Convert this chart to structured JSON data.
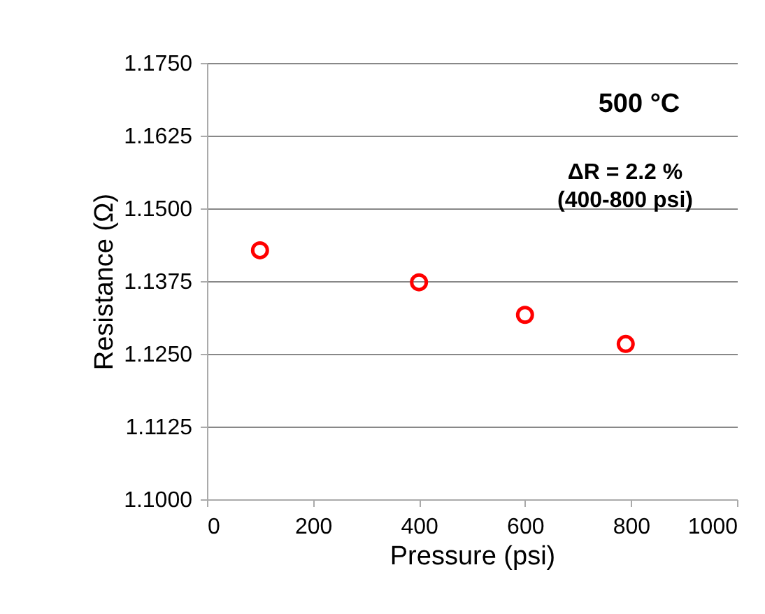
{
  "chart_data": {
    "type": "scatter",
    "xlabel": "Pressure (psi)",
    "ylabel": "Resistance (Ω)",
    "x": [
      100,
      400,
      600,
      790
    ],
    "series": [
      {
        "color": "#ff0000",
        "values": [
          1.1428,
          1.1373,
          1.1317,
          1.1267
        ]
      }
    ],
    "xlim": [
      0,
      1000
    ],
    "xticks": [
      0,
      200,
      400,
      600,
      800,
      1000
    ],
    "ylim": [
      1.1,
      1.175
    ],
    "yticks": [
      {
        "value": 1.1,
        "label": "1.1000"
      },
      {
        "value": 1.1125,
        "label": "1.1125"
      },
      {
        "value": 1.125,
        "label": "1.1250"
      },
      {
        "value": 1.1375,
        "label": "1.1375"
      },
      {
        "value": 1.15,
        "label": "1.1500"
      },
      {
        "value": 1.1625,
        "label": "1.1625"
      },
      {
        "value": 1.175,
        "label": "1.1750"
      }
    ],
    "grid": "y",
    "marker": "circle",
    "legend": false,
    "annotations": [
      "500 °C",
      "ΔR = 2.2 %\n(400-800 psi)"
    ]
  }
}
